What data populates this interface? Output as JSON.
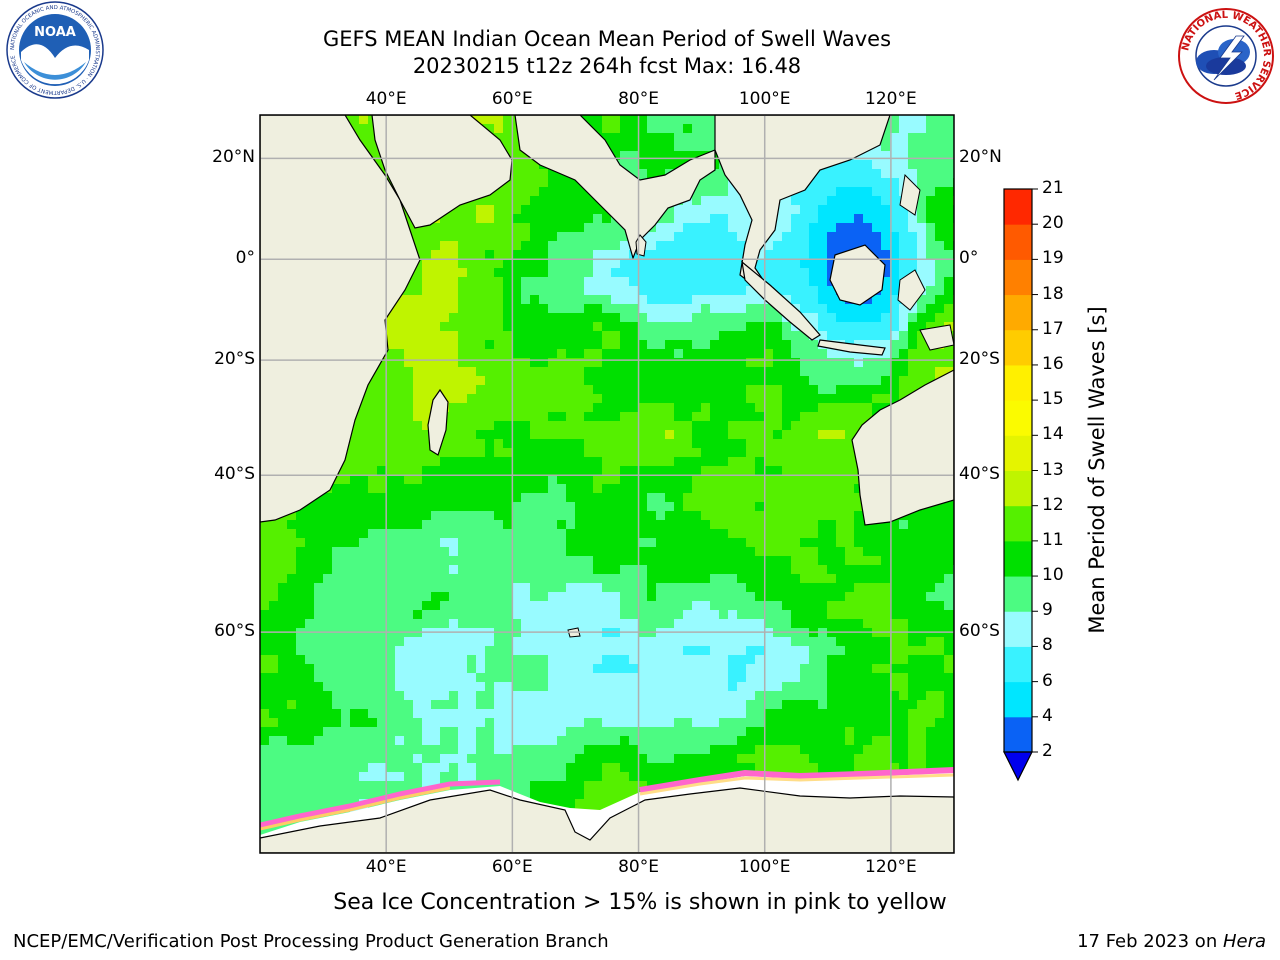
{
  "title": {
    "line1": "GEFS MEAN Indian Ocean Mean Period of Swell Waves",
    "line2": "20230215 t12z 264h fcst   Max: 16.48"
  },
  "logos": {
    "left": "NOAA",
    "left_ring": "NATIONAL OCEANIC AND ATMOSPHERIC ADMINISTRATION · U.S. DEPARTMENT OF COMMERCE",
    "right_ring": "NATIONAL WEATHER SERVICE"
  },
  "map": {
    "lon_range": [
      20,
      130
    ],
    "lat_range": [
      -76,
      28
    ],
    "lon_ticks": [
      {
        "lon": 40,
        "label": "40°E"
      },
      {
        "lon": 60,
        "label": "60°E"
      },
      {
        "lon": 80,
        "label": "80°E"
      },
      {
        "lon": 100,
        "label": "100°E"
      },
      {
        "lon": 120,
        "label": "120°E"
      }
    ],
    "lat_ticks": [
      {
        "lat": 20,
        "label": "20°N"
      },
      {
        "lat": 0,
        "label": "0°"
      },
      {
        "lat": -20,
        "label": "20°S"
      },
      {
        "lat": -40,
        "label": "40°S"
      },
      {
        "lat": -60,
        "label": "60°S"
      }
    ],
    "colors": {
      "land": "#efefdf",
      "ice_region": "#ffffff",
      "ocean_base": "#22ee22",
      "grid": "#b0b0b0",
      "coast": "#000000"
    }
  },
  "colorbar": {
    "label": "Mean Period of Swell Waves [s]",
    "ticks": [
      "2",
      "4",
      "6",
      "8",
      "9",
      "10",
      "11",
      "12",
      "13",
      "14",
      "15",
      "16",
      "17",
      "18",
      "19",
      "20",
      "21"
    ],
    "colors": [
      "#0a62f5",
      "#00e6ff",
      "#39f2ff",
      "#98fbff",
      "#4cfb82",
      "#00e000",
      "#55f000",
      "#bff400",
      "#e5f400",
      "#fbfb00",
      "#fff000",
      "#ffcc00",
      "#ffaa00",
      "#ff8000",
      "#ff5a00",
      "#ff2800"
    ],
    "extend_color": "#0000ee"
  },
  "caption": "Sea Ice Concentration > 15% is shown in pink to yellow",
  "footer": {
    "left": "NCEP/EMC/Verification Post Processing Product Generation Branch",
    "right_prefix": "17 Feb 2023 on ",
    "right_italic": "Hera"
  }
}
